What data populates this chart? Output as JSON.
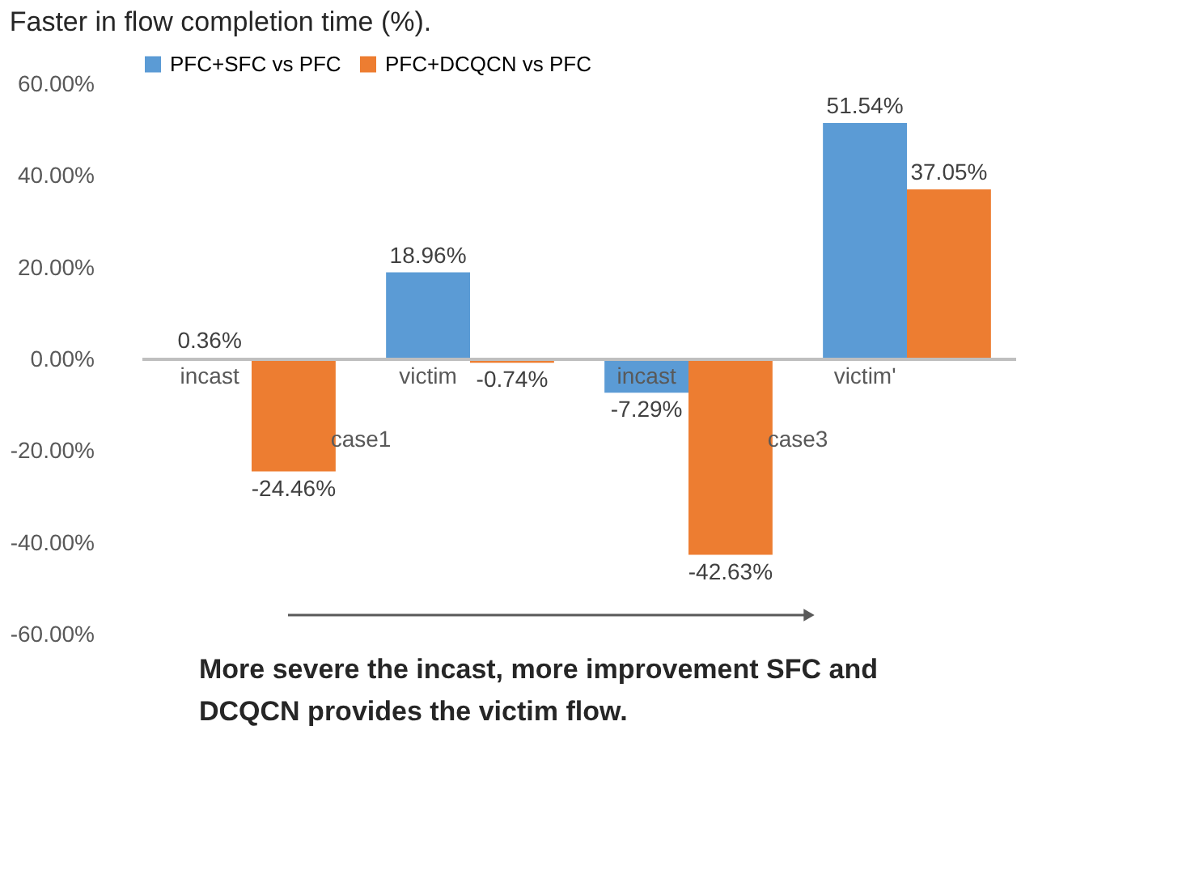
{
  "chart_data": {
    "type": "bar",
    "title": "Faster in flow completion time (%).",
    "categories": [
      "incast",
      "victim",
      "incast",
      "victim'"
    ],
    "series": [
      {
        "name": "PFC+SFC vs PFC",
        "color": "#5b9bd5",
        "values": [
          0.36,
          18.96,
          -7.29,
          51.54
        ],
        "value_labels": [
          "0.36%",
          "18.96%",
          "-7.29%",
          "51.54%"
        ]
      },
      {
        "name": "PFC+DCQCN vs PFC",
        "color": "#ed7d31",
        "values": [
          -24.46,
          -0.74,
          -42.63,
          37.05
        ],
        "value_labels": [
          "-24.46%",
          "-0.74%",
          "-42.63%",
          "37.05%"
        ]
      }
    ],
    "ylim": [
      -60,
      60
    ],
    "yticks": [
      {
        "value": -60,
        "label": "-60.00%"
      },
      {
        "value": -40,
        "label": "-40.00%"
      },
      {
        "value": -20,
        "label": "-20.00%"
      },
      {
        "value": 0,
        "label": "0.00%"
      },
      {
        "value": 20,
        "label": "20.00%"
      },
      {
        "value": 40,
        "label": "40.00%"
      },
      {
        "value": 60,
        "label": "60.00%"
      }
    ],
    "grid": false,
    "legend": "top",
    "annotations": [
      "case1",
      "case3",
      "More severe the incast, more improvement SFC and DCQCN provides the victim flow."
    ]
  }
}
